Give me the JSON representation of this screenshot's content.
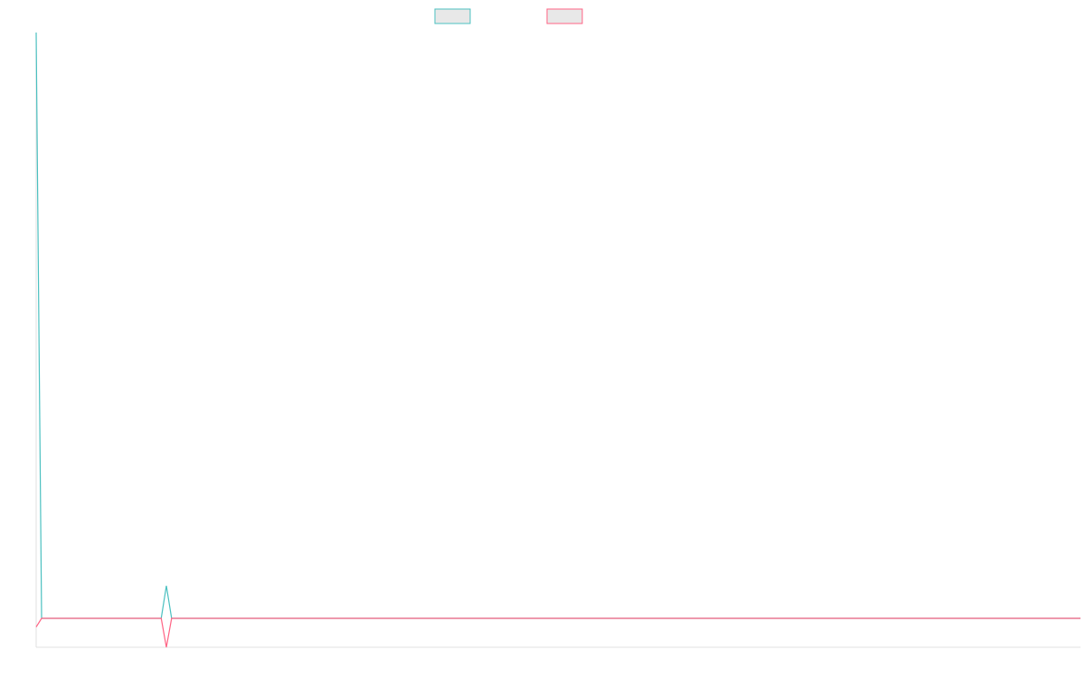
{
  "chart_data": {
    "type": "line",
    "title": "",
    "xlabel": "",
    "ylabel": "",
    "grid": false,
    "legend": {
      "placement": "top-center"
    },
    "x": [
      0,
      1,
      2,
      3,
      4,
      5,
      6,
      7,
      8,
      9,
      10,
      11,
      12,
      13,
      14,
      15,
      16,
      17,
      18,
      19,
      20,
      21,
      22,
      23,
      24,
      25,
      26,
      27,
      28,
      29,
      30,
      31,
      32,
      33,
      34,
      35,
      36,
      37,
      38,
      39,
      40,
      41,
      42,
      43,
      44,
      45,
      46,
      47,
      48,
      49,
      50,
      51,
      52,
      53,
      54,
      55,
      56,
      57,
      58,
      59,
      60,
      61,
      62,
      63,
      64,
      65,
      66,
      67,
      68,
      69,
      70,
      71,
      72,
      73,
      74,
      75,
      76,
      77,
      78,
      79,
      80,
      81,
      82,
      83,
      84,
      85,
      86,
      87,
      88,
      89,
      90,
      91,
      92,
      93,
      94,
      95,
      96,
      97,
      98,
      99,
      100,
      101,
      102,
      103,
      104,
      105,
      106,
      107,
      108,
      109,
      110,
      111,
      112,
      113,
      114,
      115,
      116,
      117,
      118,
      119,
      120,
      121,
      122,
      123,
      124,
      125,
      126,
      127,
      128,
      129,
      130,
      131,
      132,
      133,
      134,
      135,
      136,
      137,
      138,
      139,
      140,
      141,
      142,
      143,
      144,
      145,
      146,
      147,
      148,
      149,
      150,
      151,
      152,
      153,
      154,
      155,
      156,
      157,
      158,
      159,
      160,
      161,
      162,
      163,
      164,
      165,
      166,
      167,
      168,
      169,
      170,
      171,
      172,
      173,
      174,
      175,
      176,
      177,
      178,
      179,
      180,
      181,
      182,
      183,
      184,
      185,
      186,
      187,
      188,
      189,
      190,
      191,
      192,
      193,
      194,
      195,
      196,
      197,
      198,
      199,
      200
    ],
    "xlim": [
      0,
      200
    ],
    "ylim": [
      -1,
      20
    ],
    "series": [
      {
        "color": "#4bc0c0",
        "fill": "#e8e8e8",
        "values": [
          20,
          0,
          0,
          0,
          0,
          0,
          0,
          0,
          0,
          0,
          0,
          0,
          0,
          0,
          0,
          0,
          0,
          0,
          0,
          0,
          0,
          0,
          0,
          0,
          0,
          1,
          0,
          0,
          0,
          0,
          0,
          0,
          0,
          0,
          0,
          0,
          0,
          0,
          0,
          0,
          0,
          0,
          0,
          0,
          0,
          0,
          0,
          0,
          0,
          0,
          0,
          0,
          0,
          0,
          0,
          0,
          0,
          0,
          0,
          0,
          0,
          0,
          0,
          0,
          0,
          0,
          0,
          0,
          0,
          0,
          0,
          0,
          0,
          0,
          0,
          0,
          0,
          0,
          0,
          0,
          0,
          0,
          0,
          0,
          0,
          0,
          0,
          0,
          0,
          0,
          0,
          0,
          0,
          0,
          0,
          0,
          0,
          0,
          0,
          0,
          0,
          0,
          0,
          0,
          0,
          0,
          0,
          0,
          0,
          0,
          0,
          0,
          0,
          0,
          0,
          0,
          0,
          0,
          0,
          0,
          0,
          0,
          0,
          0,
          0,
          0,
          0,
          0,
          0,
          0,
          0,
          0,
          0,
          0,
          0,
          0,
          0,
          0,
          0,
          0,
          0,
          0,
          0,
          0,
          0,
          0,
          0,
          0,
          0,
          0,
          0,
          0,
          0,
          0,
          0,
          0,
          0,
          0,
          0,
          0,
          0,
          0,
          0,
          0,
          0,
          0,
          0,
          0,
          0,
          0,
          0,
          0,
          0,
          0,
          0,
          0,
          0,
          0,
          0,
          0,
          0,
          0,
          0,
          0,
          0,
          0,
          0,
          0,
          0,
          0,
          0,
          0,
          0,
          0,
          0,
          0,
          0,
          0,
          0,
          0,
          0
        ]
      },
      {
        "color": "#ff6384",
        "fill": "#e8e8e8",
        "values": [
          -0.3,
          0,
          0,
          0,
          0,
          0,
          0,
          0,
          0,
          0,
          0,
          0,
          0,
          0,
          0,
          0,
          0,
          0,
          0,
          0,
          0,
          0,
          0,
          0,
          0,
          -1,
          0,
          0,
          0,
          0,
          0,
          0,
          0,
          0,
          0,
          0,
          0,
          0,
          0,
          0,
          0,
          0,
          0,
          0,
          0,
          0,
          0,
          0,
          0,
          0,
          0,
          0,
          0,
          0,
          0,
          0,
          0,
          0,
          0,
          0,
          0,
          0,
          0,
          0,
          0,
          0,
          0,
          0,
          0,
          0,
          0,
          0,
          0,
          0,
          0,
          0,
          0,
          0,
          0,
          0,
          0,
          0,
          0,
          0,
          0,
          0,
          0,
          0,
          0,
          0,
          0,
          0,
          0,
          0,
          0,
          0,
          0,
          0,
          0,
          0,
          0,
          0,
          0,
          0,
          0,
          0,
          0,
          0,
          0,
          0,
          0,
          0,
          0,
          0,
          0,
          0,
          0,
          0,
          0,
          0,
          0,
          0,
          0,
          0,
          0,
          0,
          0,
          0,
          0,
          0,
          0,
          0,
          0,
          0,
          0,
          0,
          0,
          0,
          0,
          0,
          0,
          0,
          0,
          0,
          0,
          0,
          0,
          0,
          0,
          0,
          0,
          0,
          0,
          0,
          0,
          0,
          0,
          0,
          0,
          0,
          0,
          0,
          0,
          0,
          0,
          0,
          0,
          0,
          0,
          0,
          0,
          0,
          0,
          0,
          0,
          0,
          0,
          0,
          0,
          0,
          0,
          0,
          0,
          0,
          0,
          0,
          0,
          0,
          0,
          0,
          0,
          0,
          0,
          0,
          0,
          0,
          0,
          0,
          0,
          0,
          0
        ]
      }
    ]
  }
}
